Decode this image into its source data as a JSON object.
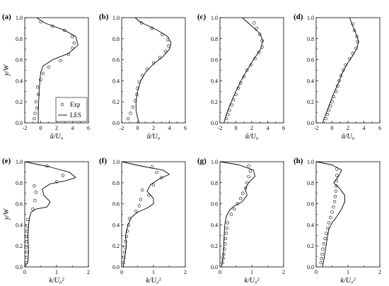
{
  "figure": {
    "ylabel": "y/W",
    "legend": [
      "Exp",
      "LES"
    ]
  },
  "chart_data": [
    {
      "type": "line",
      "panel_label": "(a)",
      "xlabel": "ū/U₀",
      "xlim": [
        -2,
        6
      ],
      "ylim": [
        0,
        1
      ],
      "xticks": [
        "-2",
        "0",
        "2",
        "4",
        "6"
      ],
      "yticks": [
        "0.0",
        "0.2",
        "0.4",
        "0.6",
        "0.8",
        "1.0"
      ],
      "legend": [
        "Exp",
        "LES"
      ],
      "legend_position": "bottom-left",
      "series": [
        {
          "name": "Exp",
          "style": "circles",
          "x": [
            -0.8,
            -0.7,
            -0.5,
            -0.6,
            -0.3,
            -0.4,
            0.0,
            0.3,
            1.0,
            2.5,
            3.5,
            4.0,
            4.2,
            4.0,
            3.0,
            1.5,
            0.0
          ],
          "y": [
            0.04,
            0.09,
            0.14,
            0.2,
            0.27,
            0.34,
            0.41,
            0.47,
            0.53,
            0.59,
            0.65,
            0.71,
            0.76,
            0.82,
            0.88,
            0.92,
            0.96
          ]
        },
        {
          "name": "LES",
          "style": "line",
          "x": [
            -0.3,
            -0.3,
            -0.25,
            -0.2,
            -0.1,
            0.0,
            0.3,
            1.5,
            3.5,
            4.7,
            4.4,
            3.0,
            0.5,
            -0.5
          ],
          "y": [
            0.0,
            0.1,
            0.2,
            0.3,
            0.4,
            0.48,
            0.54,
            0.6,
            0.66,
            0.74,
            0.82,
            0.88,
            0.95,
            1.0
          ]
        }
      ]
    },
    {
      "type": "line",
      "panel_label": "(b)",
      "xlabel": "ū/U₀",
      "xlim": [
        -2,
        6
      ],
      "ylim": [
        0,
        1
      ],
      "xticks": [
        "-2",
        "0",
        "2",
        "4",
        "6"
      ],
      "yticks": [
        "0.0",
        "0.2",
        "0.4",
        "0.6",
        "0.8",
        "1.0"
      ],
      "series": [
        {
          "name": "Exp",
          "style": "circles",
          "x": [
            -1.2,
            -0.9,
            -0.6,
            -0.3,
            -0.1,
            0.0,
            0.2,
            0.6,
            1.2,
            2.0,
            2.8,
            3.5,
            3.9,
            3.8,
            3.1,
            1.8,
            0.5
          ],
          "y": [
            0.04,
            0.09,
            0.15,
            0.21,
            0.27,
            0.33,
            0.39,
            0.45,
            0.51,
            0.57,
            0.62,
            0.68,
            0.73,
            0.79,
            0.84,
            0.9,
            0.95
          ]
        },
        {
          "name": "LES",
          "style": "line",
          "x": [
            0.2,
            0.0,
            -0.2,
            -0.2,
            0.0,
            0.4,
            1.0,
            2.0,
            3.2,
            4.0,
            4.2,
            3.8,
            2.5,
            0.3,
            -0.3
          ],
          "y": [
            0.0,
            0.05,
            0.12,
            0.2,
            0.3,
            0.4,
            0.48,
            0.56,
            0.63,
            0.7,
            0.76,
            0.82,
            0.88,
            0.96,
            1.0
          ]
        }
      ]
    },
    {
      "type": "line",
      "panel_label": "(c)",
      "xlabel": "ū/U₀",
      "xlim": [
        -2,
        6
      ],
      "ylim": [
        0,
        1
      ],
      "xticks": [
        "-2",
        "0",
        "2",
        "4",
        "6"
      ],
      "yticks": [
        "0.0",
        "0.2",
        "0.4",
        "0.6",
        "0.8",
        "1.0"
      ],
      "series": [
        {
          "name": "Exp",
          "style": "circles",
          "x": [
            -1.2,
            -1.0,
            -0.8,
            -0.5,
            -0.3,
            0.0,
            0.3,
            0.6,
            1.0,
            1.4,
            1.9,
            2.4,
            2.9,
            3.3,
            3.3,
            3.0,
            2.6,
            2.3
          ],
          "y": [
            0.04,
            0.08,
            0.12,
            0.17,
            0.22,
            0.27,
            0.33,
            0.38,
            0.44,
            0.5,
            0.55,
            0.61,
            0.67,
            0.72,
            0.78,
            0.84,
            0.9,
            0.95
          ]
        },
        {
          "name": "LES",
          "style": "line",
          "x": [
            -1.5,
            -1.2,
            -0.7,
            0.0,
            0.8,
            1.4,
            2.2,
            3.1,
            3.4,
            3.0,
            2.0,
            0.8
          ],
          "y": [
            0.0,
            0.08,
            0.18,
            0.3,
            0.42,
            0.5,
            0.6,
            0.7,
            0.78,
            0.85,
            0.92,
            1.0
          ]
        }
      ]
    },
    {
      "type": "line",
      "panel_label": "(d)",
      "xlabel": "ū/U₀",
      "xlim": [
        -2,
        6
      ],
      "ylim": [
        0,
        1
      ],
      "xticks": [
        "-2",
        "0",
        "2",
        "4",
        "6"
      ],
      "yticks": [
        "0.0",
        "0.2",
        "0.4",
        "0.6",
        "0.8",
        "1.0"
      ],
      "series": [
        {
          "name": "Exp",
          "style": "circles",
          "x": [
            -0.8,
            -0.6,
            -0.4,
            -0.2,
            0.0,
            0.2,
            0.5,
            0.7,
            0.9,
            1.1,
            1.4,
            1.7,
            2.2,
            2.6,
            3.0,
            3.2,
            3.1,
            2.8,
            2.6
          ],
          "y": [
            0.04,
            0.08,
            0.12,
            0.16,
            0.2,
            0.25,
            0.3,
            0.35,
            0.4,
            0.45,
            0.5,
            0.55,
            0.61,
            0.66,
            0.71,
            0.77,
            0.82,
            0.88,
            0.94
          ]
        },
        {
          "name": "LES",
          "style": "line",
          "x": [
            -1.2,
            -0.8,
            -0.3,
            0.2,
            0.8,
            1.2,
            1.8,
            2.6,
            3.2,
            3.3,
            3.0,
            2.6,
            2.2
          ],
          "y": [
            0.0,
            0.08,
            0.18,
            0.28,
            0.38,
            0.46,
            0.55,
            0.64,
            0.72,
            0.78,
            0.85,
            0.92,
            1.0
          ]
        }
      ]
    },
    {
      "type": "line",
      "panel_label": "(e)",
      "xlabel": "k/U₀²",
      "xlim": [
        0,
        2
      ],
      "ylim": [
        0,
        1
      ],
      "xticks": [
        "0",
        "1",
        "2"
      ],
      "yticks": [
        "0.0",
        "0.2",
        "0.4",
        "0.6",
        "0.8",
        "1.0"
      ],
      "series": [
        {
          "name": "Exp",
          "style": "circles",
          "x": [
            0.05,
            0.07,
            0.06,
            0.05,
            0.06,
            0.05,
            0.07,
            0.08,
            0.1,
            0.25,
            0.32,
            0.35,
            0.3,
            1.0,
            1.2,
            0.7
          ],
          "y": [
            0.04,
            0.09,
            0.14,
            0.19,
            0.24,
            0.29,
            0.34,
            0.39,
            0.45,
            0.55,
            0.63,
            0.71,
            0.77,
            0.81,
            0.87,
            0.96
          ]
        },
        {
          "name": "LES",
          "style": "line",
          "x": [
            0.0,
            0.1,
            0.12,
            0.1,
            0.12,
            0.15,
            0.2,
            0.35,
            0.7,
            0.8,
            0.6,
            0.55,
            0.8,
            1.3,
            1.6,
            1.4,
            0.8,
            0.0
          ],
          "y": [
            0.0,
            0.05,
            0.15,
            0.28,
            0.4,
            0.47,
            0.52,
            0.55,
            0.57,
            0.62,
            0.68,
            0.74,
            0.79,
            0.82,
            0.85,
            0.9,
            0.95,
            1.0
          ]
        }
      ]
    },
    {
      "type": "line",
      "panel_label": "(f)",
      "xlabel": "k/U₀²",
      "xlim": [
        0,
        2
      ],
      "ylim": [
        0,
        1
      ],
      "xticks": [
        "0",
        "1",
        "2"
      ],
      "yticks": [
        "0.0",
        "0.2",
        "0.4",
        "0.6",
        "0.8",
        "1.0"
      ],
      "series": [
        {
          "name": "Exp",
          "style": "circles",
          "x": [
            0.05,
            0.07,
            0.09,
            0.1,
            0.12,
            0.15,
            0.18,
            0.22,
            0.25,
            0.45,
            0.55,
            0.6,
            0.85,
            0.65,
            1.0,
            1.25,
            1.1,
            0.95
          ],
          "y": [
            0.04,
            0.09,
            0.14,
            0.19,
            0.24,
            0.29,
            0.34,
            0.4,
            0.46,
            0.53,
            0.58,
            0.64,
            0.68,
            0.73,
            0.78,
            0.85,
            0.9,
            0.95
          ]
        },
        {
          "name": "LES",
          "style": "line",
          "x": [
            0.05,
            0.1,
            0.15,
            0.12,
            0.2,
            0.3,
            0.5,
            0.8,
            1.0,
            1.0,
            0.8,
            0.9,
            1.2,
            1.5,
            1.3,
            0.6,
            0.0
          ],
          "y": [
            0.0,
            0.1,
            0.2,
            0.3,
            0.4,
            0.47,
            0.52,
            0.56,
            0.6,
            0.65,
            0.72,
            0.78,
            0.84,
            0.88,
            0.92,
            0.96,
            1.0
          ]
        }
      ]
    },
    {
      "type": "line",
      "panel_label": "(g)",
      "xlabel": "k/U₀²",
      "xlim": [
        0,
        2
      ],
      "ylim": [
        0,
        1
      ],
      "xticks": [
        "0",
        "1",
        "2"
      ],
      "yticks": [
        "0.0",
        "0.2",
        "0.4",
        "0.6",
        "0.8",
        "1.0"
      ],
      "series": [
        {
          "name": "Exp",
          "style": "circles",
          "x": [
            0.08,
            0.1,
            0.12,
            0.14,
            0.16,
            0.18,
            0.2,
            0.22,
            0.24,
            0.35,
            0.45,
            0.55,
            0.65,
            0.72,
            0.8,
            0.85,
            0.9,
            0.95,
            0.9
          ],
          "y": [
            0.04,
            0.08,
            0.12,
            0.17,
            0.22,
            0.27,
            0.32,
            0.37,
            0.42,
            0.5,
            0.55,
            0.6,
            0.65,
            0.7,
            0.75,
            0.8,
            0.86,
            0.91,
            0.96
          ]
        },
        {
          "name": "LES",
          "style": "line",
          "x": [
            0.05,
            0.1,
            0.12,
            0.13,
            0.15,
            0.2,
            0.3,
            0.45,
            0.7,
            0.85,
            0.8,
            0.9,
            1.1,
            1.05,
            0.6,
            0.0
          ],
          "y": [
            0.0,
            0.1,
            0.2,
            0.3,
            0.4,
            0.48,
            0.54,
            0.58,
            0.62,
            0.68,
            0.74,
            0.8,
            0.86,
            0.92,
            0.97,
            1.0
          ]
        }
      ]
    },
    {
      "type": "line",
      "panel_label": "(h)",
      "xlabel": "k/U₀²",
      "xlim": [
        0,
        2
      ],
      "ylim": [
        0,
        1
      ],
      "xticks": [
        "0",
        "1",
        "2"
      ],
      "yticks": [
        "0.0",
        "0.2",
        "0.4",
        "0.6",
        "0.8",
        "1.0"
      ],
      "series": [
        {
          "name": "Exp",
          "style": "circles",
          "x": [
            0.15,
            0.17,
            0.19,
            0.21,
            0.24,
            0.28,
            0.32,
            0.36,
            0.4,
            0.45,
            0.5,
            0.54,
            0.58,
            0.6,
            0.62,
            0.63,
            0.64,
            0.65,
            0.65
          ],
          "y": [
            0.04,
            0.08,
            0.12,
            0.17,
            0.22,
            0.27,
            0.32,
            0.37,
            0.42,
            0.47,
            0.52,
            0.57,
            0.62,
            0.67,
            0.72,
            0.77,
            0.82,
            0.87,
            0.93
          ]
        },
        {
          "name": "LES",
          "style": "line",
          "x": [
            0.2,
            0.25,
            0.3,
            0.35,
            0.4,
            0.5,
            0.65,
            0.8,
            0.9,
            0.9,
            0.75,
            0.55,
            0.7,
            0.8,
            0.5,
            0.0
          ],
          "y": [
            0.0,
            0.08,
            0.18,
            0.28,
            0.36,
            0.42,
            0.48,
            0.55,
            0.62,
            0.68,
            0.74,
            0.8,
            0.86,
            0.92,
            0.97,
            1.0
          ]
        }
      ]
    }
  ]
}
